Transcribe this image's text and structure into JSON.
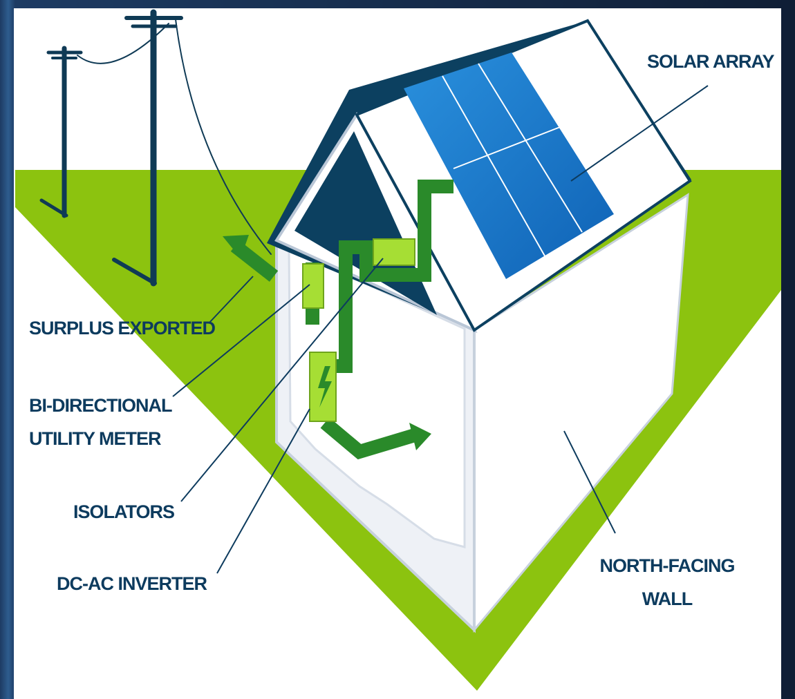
{
  "labels": {
    "solar_array": "SOLAR ARRAY",
    "surplus_exported": "SURPLUS EXPORTED",
    "meter_line1": "BI-DIRECTIONAL",
    "meter_line2": "UTILITY METER",
    "isolators": "ISOLATORS",
    "inverter": "DC-AC INVERTER",
    "wall_line1": "NORTH-FACING",
    "wall_line2": "WALL"
  },
  "colors": {
    "ground": "#8cc30f",
    "roof": "#0c4060",
    "panel_blue": "#1b7fd0",
    "flow_arrow": "#2a8a2a",
    "device": "#a6de34",
    "label": "#0d3b5e",
    "pole": "#0f3a55"
  }
}
